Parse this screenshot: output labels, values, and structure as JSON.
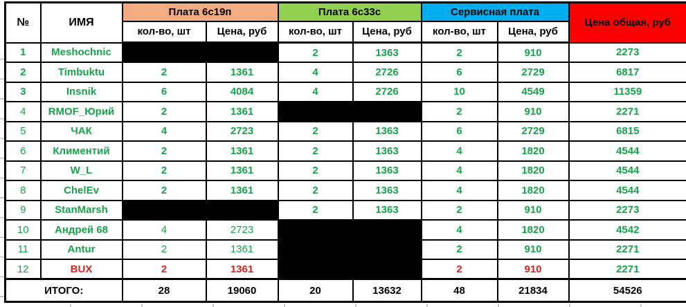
{
  "colors": {
    "green_text": "#17a34a",
    "red_text": "#d6231f",
    "group_6s19p": "#F3AC82",
    "group_6s33s": "#92D050",
    "group_service": "#00AEEF",
    "group_total": "#FF0000",
    "border": "#000000"
  },
  "table": {
    "corner_headers": {
      "num": "№",
      "name": "ИМЯ"
    },
    "groups": [
      {
        "label": "Плата 6с19п",
        "color": "#F3AC82"
      },
      {
        "label": "Плата 6с33с",
        "color": "#92D050"
      },
      {
        "label": "Сервисная плата",
        "color": "#00AEEF"
      },
      {
        "label": "Цена общая, руб",
        "color": "#FF0000"
      }
    ],
    "subcols": [
      "кол-во, шт",
      "Цена, руб",
      "кол-во, шт",
      "Цена, руб",
      "кол-во, шт",
      "Цена, руб"
    ],
    "col_keys": [
      "qty-6s19p",
      "price-6s19p",
      "qty-6s33s",
      "price-6s33s",
      "qty-service",
      "price-service",
      "total-price"
    ],
    "rows": [
      {
        "num": "1",
        "num_style": "bold",
        "name": "Meshochnic",
        "name_style": "green",
        "cells": [
          {
            "redacted": true
          },
          {
            "redacted": true
          },
          {
            "v": "2"
          },
          {
            "v": "1363"
          },
          {
            "v": "2"
          },
          {
            "v": "910"
          },
          {
            "v": "2273"
          }
        ]
      },
      {
        "num": "2",
        "num_style": "bold",
        "name": "Timbuktu",
        "name_style": "green",
        "cells": [
          {
            "v": "2"
          },
          {
            "v": "1361"
          },
          {
            "v": "4"
          },
          {
            "v": "2726"
          },
          {
            "v": "6"
          },
          {
            "v": "2729"
          },
          {
            "v": "6817"
          }
        ]
      },
      {
        "num": "3",
        "num_style": "bold",
        "name": "Insnik",
        "name_style": "green",
        "cells": [
          {
            "v": "6"
          },
          {
            "v": "4084"
          },
          {
            "v": "4"
          },
          {
            "v": "2726"
          },
          {
            "v": "10"
          },
          {
            "v": "4549"
          },
          {
            "v": "11359"
          }
        ]
      },
      {
        "num": "4",
        "num_style": "light",
        "name": "RMOF_Юрий",
        "name_style": "green",
        "cells": [
          {
            "v": "2"
          },
          {
            "v": "1361"
          },
          {
            "redacted": true
          },
          {
            "redacted": true
          },
          {
            "v": "2"
          },
          {
            "v": "910"
          },
          {
            "v": "2271"
          }
        ]
      },
      {
        "num": "5",
        "num_style": "light",
        "name": "ЧАК",
        "name_style": "green",
        "cells": [
          {
            "v": "4"
          },
          {
            "v": "2723"
          },
          {
            "v": "2"
          },
          {
            "v": "1363"
          },
          {
            "v": "6"
          },
          {
            "v": "2729"
          },
          {
            "v": "6815"
          }
        ]
      },
      {
        "num": "6",
        "num_style": "light",
        "name": "Климентий",
        "name_style": "green",
        "cells": [
          {
            "v": "2"
          },
          {
            "v": "1361"
          },
          {
            "v": "2"
          },
          {
            "v": "1363"
          },
          {
            "v": "4"
          },
          {
            "v": "1820"
          },
          {
            "v": "4544"
          }
        ]
      },
      {
        "num": "7",
        "num_style": "light",
        "name": "W_L",
        "name_style": "green",
        "cells": [
          {
            "v": "2"
          },
          {
            "v": "1361"
          },
          {
            "v": "2"
          },
          {
            "v": "1363"
          },
          {
            "v": "4"
          },
          {
            "v": "1820"
          },
          {
            "v": "4544"
          }
        ]
      },
      {
        "num": "8",
        "num_style": "light",
        "name": "ChelEv",
        "name_style": "green",
        "cells": [
          {
            "v": "2"
          },
          {
            "v": "1361"
          },
          {
            "v": "2"
          },
          {
            "v": "1363"
          },
          {
            "v": "4"
          },
          {
            "v": "1820"
          },
          {
            "v": "4544"
          }
        ]
      },
      {
        "num": "9",
        "num_style": "light",
        "name": "StanMarsh",
        "name_style": "green",
        "cells": [
          {
            "redacted": true
          },
          {
            "redacted": true
          },
          {
            "v": "2"
          },
          {
            "v": "1363"
          },
          {
            "v": "2"
          },
          {
            "v": "910"
          },
          {
            "v": "2273"
          }
        ]
      },
      {
        "num": "10",
        "num_style": "light",
        "name": "Андрей 68",
        "name_style": "green",
        "cells": [
          {
            "v": "4",
            "style": "light"
          },
          {
            "v": "2723",
            "style": "light"
          },
          {
            "redacted": true
          },
          {
            "redacted": true
          },
          {
            "v": "4"
          },
          {
            "v": "1820"
          },
          {
            "v": "4542"
          }
        ]
      },
      {
        "num": "11",
        "num_style": "light",
        "name": "Antur",
        "name_style": "green",
        "cells": [
          {
            "v": "2",
            "style": "light"
          },
          {
            "v": "1361",
            "style": "light"
          },
          {
            "redacted": true
          },
          {
            "redacted": true
          },
          {
            "v": "2"
          },
          {
            "v": "910"
          },
          {
            "v": "2271"
          }
        ]
      },
      {
        "num": "12",
        "num_style": "light",
        "name": "BUX",
        "name_style": "red",
        "cells": [
          {
            "v": "2",
            "style": "red"
          },
          {
            "v": "1361",
            "style": "red"
          },
          {
            "redacted": true
          },
          {
            "redacted": true
          },
          {
            "v": "2",
            "style": "red"
          },
          {
            "v": "910",
            "style": "red"
          },
          {
            "v": "2271"
          }
        ]
      }
    ],
    "totals": {
      "label": "ИТОГО:",
      "values": [
        "28",
        "19060",
        "20",
        "13632",
        "48",
        "21834",
        "54526"
      ]
    }
  }
}
